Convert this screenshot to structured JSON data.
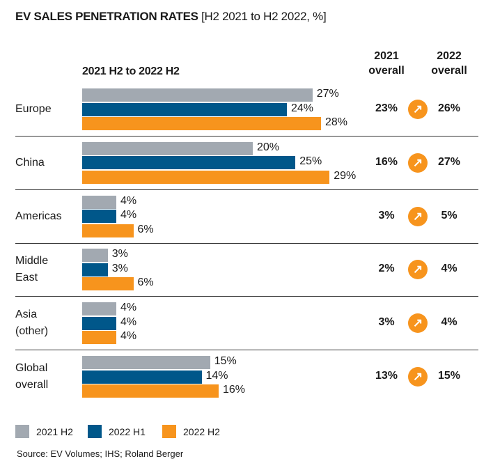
{
  "chart_data": {
    "type": "bar",
    "orientation": "horizontal",
    "title": "EV SALES PENETRATION RATES",
    "title_suffix": "[H2 2021 to H2 2022, %]",
    "subtitle": "2021 H2 to 2022 H2",
    "categories": [
      [
        "Europe"
      ],
      [
        "China"
      ],
      [
        "Americas"
      ],
      [
        "Middle",
        "East"
      ],
      [
        "Asia",
        "(other)"
      ],
      [
        "Global",
        "overall"
      ]
    ],
    "series": [
      {
        "name": "2021 H2",
        "color": "#a2a9b1",
        "values": [
          27,
          20,
          4,
          3,
          4,
          15
        ]
      },
      {
        "name": "2022 H1",
        "color": "#00578a",
        "values": [
          24,
          25,
          4,
          3,
          4,
          14
        ]
      },
      {
        "name": "2022 H2",
        "color": "#f7941d",
        "values": [
          28,
          29,
          6,
          6,
          4,
          16
        ]
      }
    ],
    "overall_headers": [
      "2021\noverall",
      "2022\noverall"
    ],
    "overall_2021": [
      23,
      16,
      3,
      2,
      3,
      13
    ],
    "overall_2022": [
      26,
      27,
      5,
      4,
      4,
      15
    ],
    "trend_icon": "arrow-up-right-icon",
    "legend_position": "bottom-left",
    "source": "Source: EV Volumes; IHS; Roland Berger"
  }
}
